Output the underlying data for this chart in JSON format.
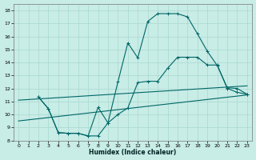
{
  "xlabel": "Humidex (Indice chaleur)",
  "bg_color": "#c8ece6",
  "line_color": "#006666",
  "grid_color": "#a8d8d0",
  "xlim": [
    -0.5,
    23.5
  ],
  "ylim": [
    8,
    18.5
  ],
  "xticks": [
    0,
    1,
    2,
    3,
    4,
    5,
    6,
    7,
    8,
    9,
    10,
    11,
    12,
    13,
    14,
    15,
    16,
    17,
    18,
    19,
    20,
    21,
    22,
    23
  ],
  "yticks": [
    8,
    9,
    10,
    11,
    12,
    13,
    14,
    15,
    16,
    17,
    18
  ],
  "upper_line_x": [
    0,
    23
  ],
  "upper_line_y": [
    11.1,
    12.2
  ],
  "lower_line_x": [
    0,
    23
  ],
  "lower_line_y": [
    9.5,
    11.5
  ],
  "mid_curve_x": [
    2,
    3,
    4,
    5,
    6,
    7,
    8,
    9,
    10,
    11,
    12,
    13,
    14,
    15,
    16,
    17,
    18,
    19,
    20,
    21,
    22,
    23
  ],
  "mid_curve_y": [
    11.35,
    10.45,
    8.6,
    8.55,
    8.55,
    8.35,
    8.35,
    9.35,
    10.0,
    10.5,
    12.45,
    12.55,
    12.55,
    13.55,
    14.4,
    14.4,
    14.4,
    13.8,
    13.8,
    12.0,
    11.7,
    11.55
  ],
  "main_curve_x": [
    2,
    3,
    4,
    5,
    6,
    7,
    8,
    9,
    10,
    11,
    12,
    13,
    14,
    15,
    16,
    17,
    18,
    19,
    20,
    21,
    22,
    23
  ],
  "main_curve_y": [
    11.35,
    10.45,
    8.6,
    8.55,
    8.55,
    8.35,
    10.55,
    9.35,
    12.5,
    15.5,
    14.35,
    17.15,
    17.75,
    17.75,
    17.75,
    17.5,
    16.2,
    14.85,
    13.75,
    12.05,
    12.0,
    11.55
  ]
}
